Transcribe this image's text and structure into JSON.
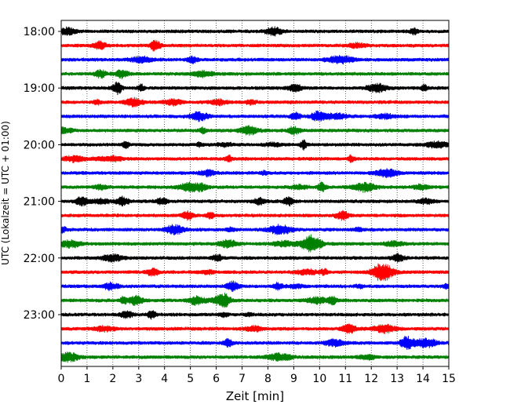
{
  "chart_data": {
    "type": "line",
    "title": "",
    "xlabel": "Zeit  [min]",
    "ylabel": "UTC (Lokalzeit = UTC + 01:00)",
    "xlim": [
      0,
      15
    ],
    "x_ticks": [
      0,
      1,
      2,
      3,
      4,
      5,
      6,
      7,
      8,
      9,
      10,
      11,
      12,
      13,
      14,
      15
    ],
    "x_tick_labels": [
      "0",
      "1",
      "2",
      "3",
      "4",
      "5",
      "6",
      "7",
      "8",
      "9",
      "10",
      "11",
      "12",
      "13",
      "14",
      "15"
    ],
    "y_ticks": [
      "18:00",
      "19:00",
      "20:00",
      "21:00",
      "22:00",
      "23:00"
    ],
    "grid": "vertical dotted lines at each minute",
    "trace_colors": [
      "#000000",
      "#ff0000",
      "#0000ff",
      "#008000"
    ],
    "traces_count": 24,
    "trace_interval_minutes": 15,
    "first_trace_time": "18:00",
    "last_trace_time": "23:45",
    "series": [
      {
        "time": "18:00",
        "color": "#000000"
      },
      {
        "time": "18:15",
        "color": "#ff0000"
      },
      {
        "time": "18:30",
        "color": "#0000ff"
      },
      {
        "time": "18:45",
        "color": "#008000"
      },
      {
        "time": "19:00",
        "color": "#000000"
      },
      {
        "time": "19:15",
        "color": "#ff0000"
      },
      {
        "time": "19:30",
        "color": "#0000ff"
      },
      {
        "time": "19:45",
        "color": "#008000"
      },
      {
        "time": "20:00",
        "color": "#000000"
      },
      {
        "time": "20:15",
        "color": "#ff0000"
      },
      {
        "time": "20:30",
        "color": "#0000ff"
      },
      {
        "time": "20:45",
        "color": "#008000"
      },
      {
        "time": "21:00",
        "color": "#000000"
      },
      {
        "time": "21:15",
        "color": "#ff0000"
      },
      {
        "time": "21:30",
        "color": "#0000ff"
      },
      {
        "time": "21:45",
        "color": "#008000"
      },
      {
        "time": "22:00",
        "color": "#000000"
      },
      {
        "time": "22:15",
        "color": "#ff0000"
      },
      {
        "time": "22:30",
        "color": "#0000ff"
      },
      {
        "time": "22:45",
        "color": "#008000"
      },
      {
        "time": "23:00",
        "color": "#000000"
      },
      {
        "time": "23:15",
        "color": "#ff0000"
      },
      {
        "time": "23:30",
        "color": "#0000ff"
      },
      {
        "time": "23:45",
        "color": "#008000"
      }
    ]
  }
}
